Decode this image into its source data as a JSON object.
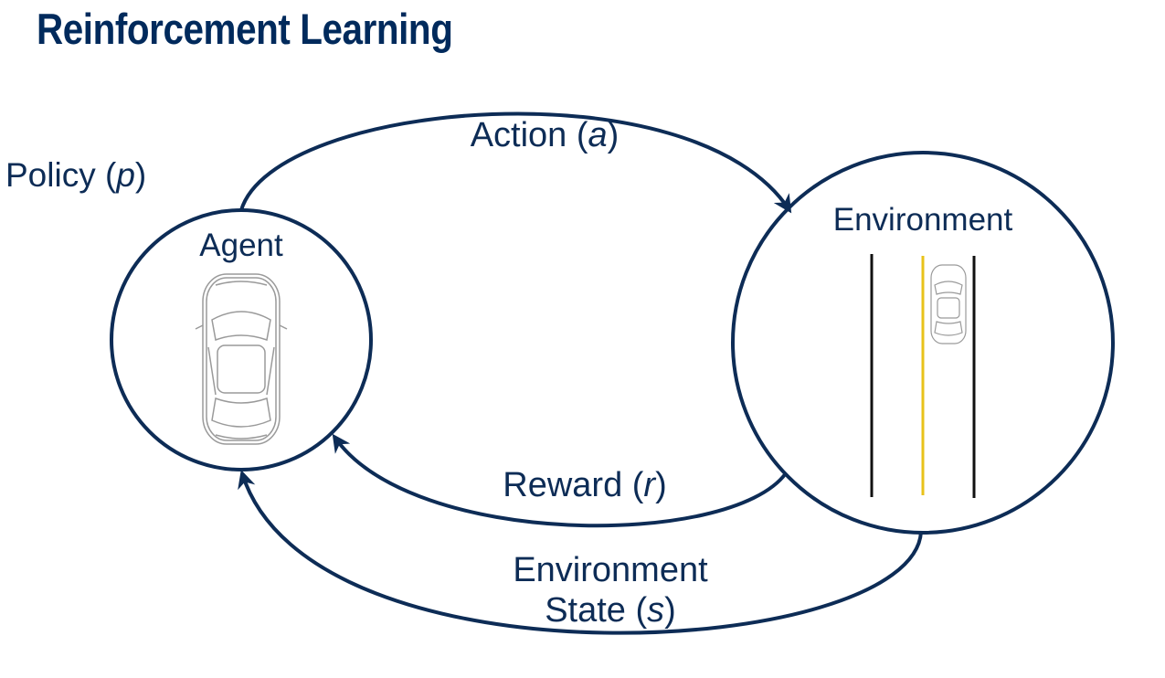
{
  "title": "Reinforcement Learning",
  "labels": {
    "policy": {
      "text": "Policy (",
      "var": "p",
      "close": ")"
    },
    "action": {
      "text": "Action (",
      "var": "a",
      "close": ")"
    },
    "reward": {
      "text": "Reward (",
      "var": "r",
      "close": ")"
    },
    "state_line1": "Environment",
    "state_line2": {
      "text": "State (",
      "var": "s",
      "close": ")"
    },
    "agent": "Agent",
    "environment": "Environment"
  },
  "colors": {
    "primary": "#0d2c56",
    "lane_black": "#111111",
    "lane_yellow": "#e8c21a",
    "car_outline": "#9a9a9a"
  },
  "icons": [
    "car-top-view-icon",
    "road-with-car-icon"
  ]
}
